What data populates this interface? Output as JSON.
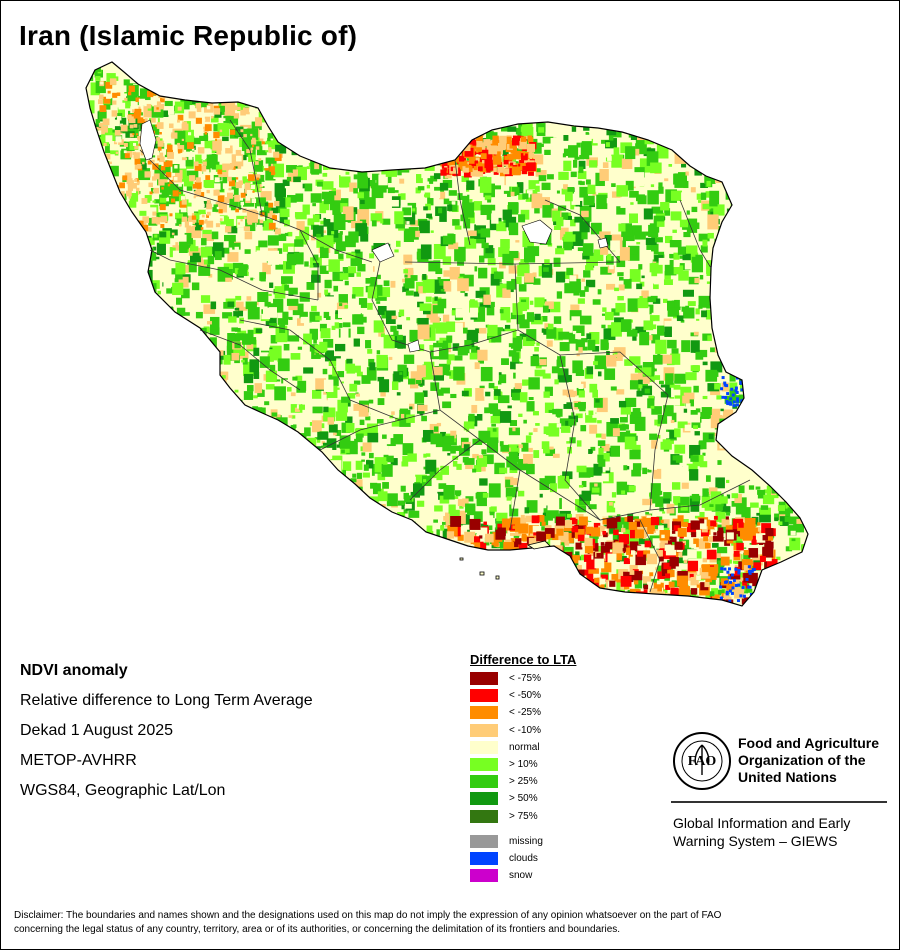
{
  "map": {
    "title": "Iran (Islamic Republic of)"
  },
  "info": {
    "heading": "NDVI anomaly",
    "line1": "Relative difference to Long Term Average",
    "line2": "Dekad 1 August 2025",
    "line3": "METOP-AVHRR",
    "line4": "WGS84, Geographic Lat/Lon"
  },
  "legend": {
    "title": "Difference to LTA",
    "items": [
      {
        "label": "< -75%",
        "color": "#990000"
      },
      {
        "label": "< -50%",
        "color": "#ff0000"
      },
      {
        "label": "< -25%",
        "color": "#ff8c00"
      },
      {
        "label": "< -10%",
        "color": "#ffcc77"
      },
      {
        "label": "normal",
        "color": "#ffffcc"
      },
      {
        "label": "> 10%",
        "color": "#77ff22"
      },
      {
        "label": "> 25%",
        "color": "#33cc11"
      },
      {
        "label": "> 50%",
        "color": "#119911"
      },
      {
        "label": "> 75%",
        "color": "#337711"
      }
    ],
    "extra": [
      {
        "label": "missing",
        "color": "#999999"
      },
      {
        "label": "clouds",
        "color": "#0044ff"
      },
      {
        "label": "snow",
        "color": "#cc00cc"
      }
    ]
  },
  "fao": {
    "logo_letters": "FAO",
    "line1": "Food and Agriculture",
    "line2": "Organization of the",
    "line3": "United Nations"
  },
  "giews": {
    "line1": "Global Information and Early",
    "line2": "Warning System – GIEWS"
  },
  "disclaimer": {
    "line1": "Disclaimer: The boundaries and names shown and the designations used on this map do not imply the expression of any opinion whatsoever on the part of FAO",
    "line2": "concerning the legal status of any country, territory, area or of its authorities, or concerning the delimitation of its frontiers and boundaries."
  }
}
